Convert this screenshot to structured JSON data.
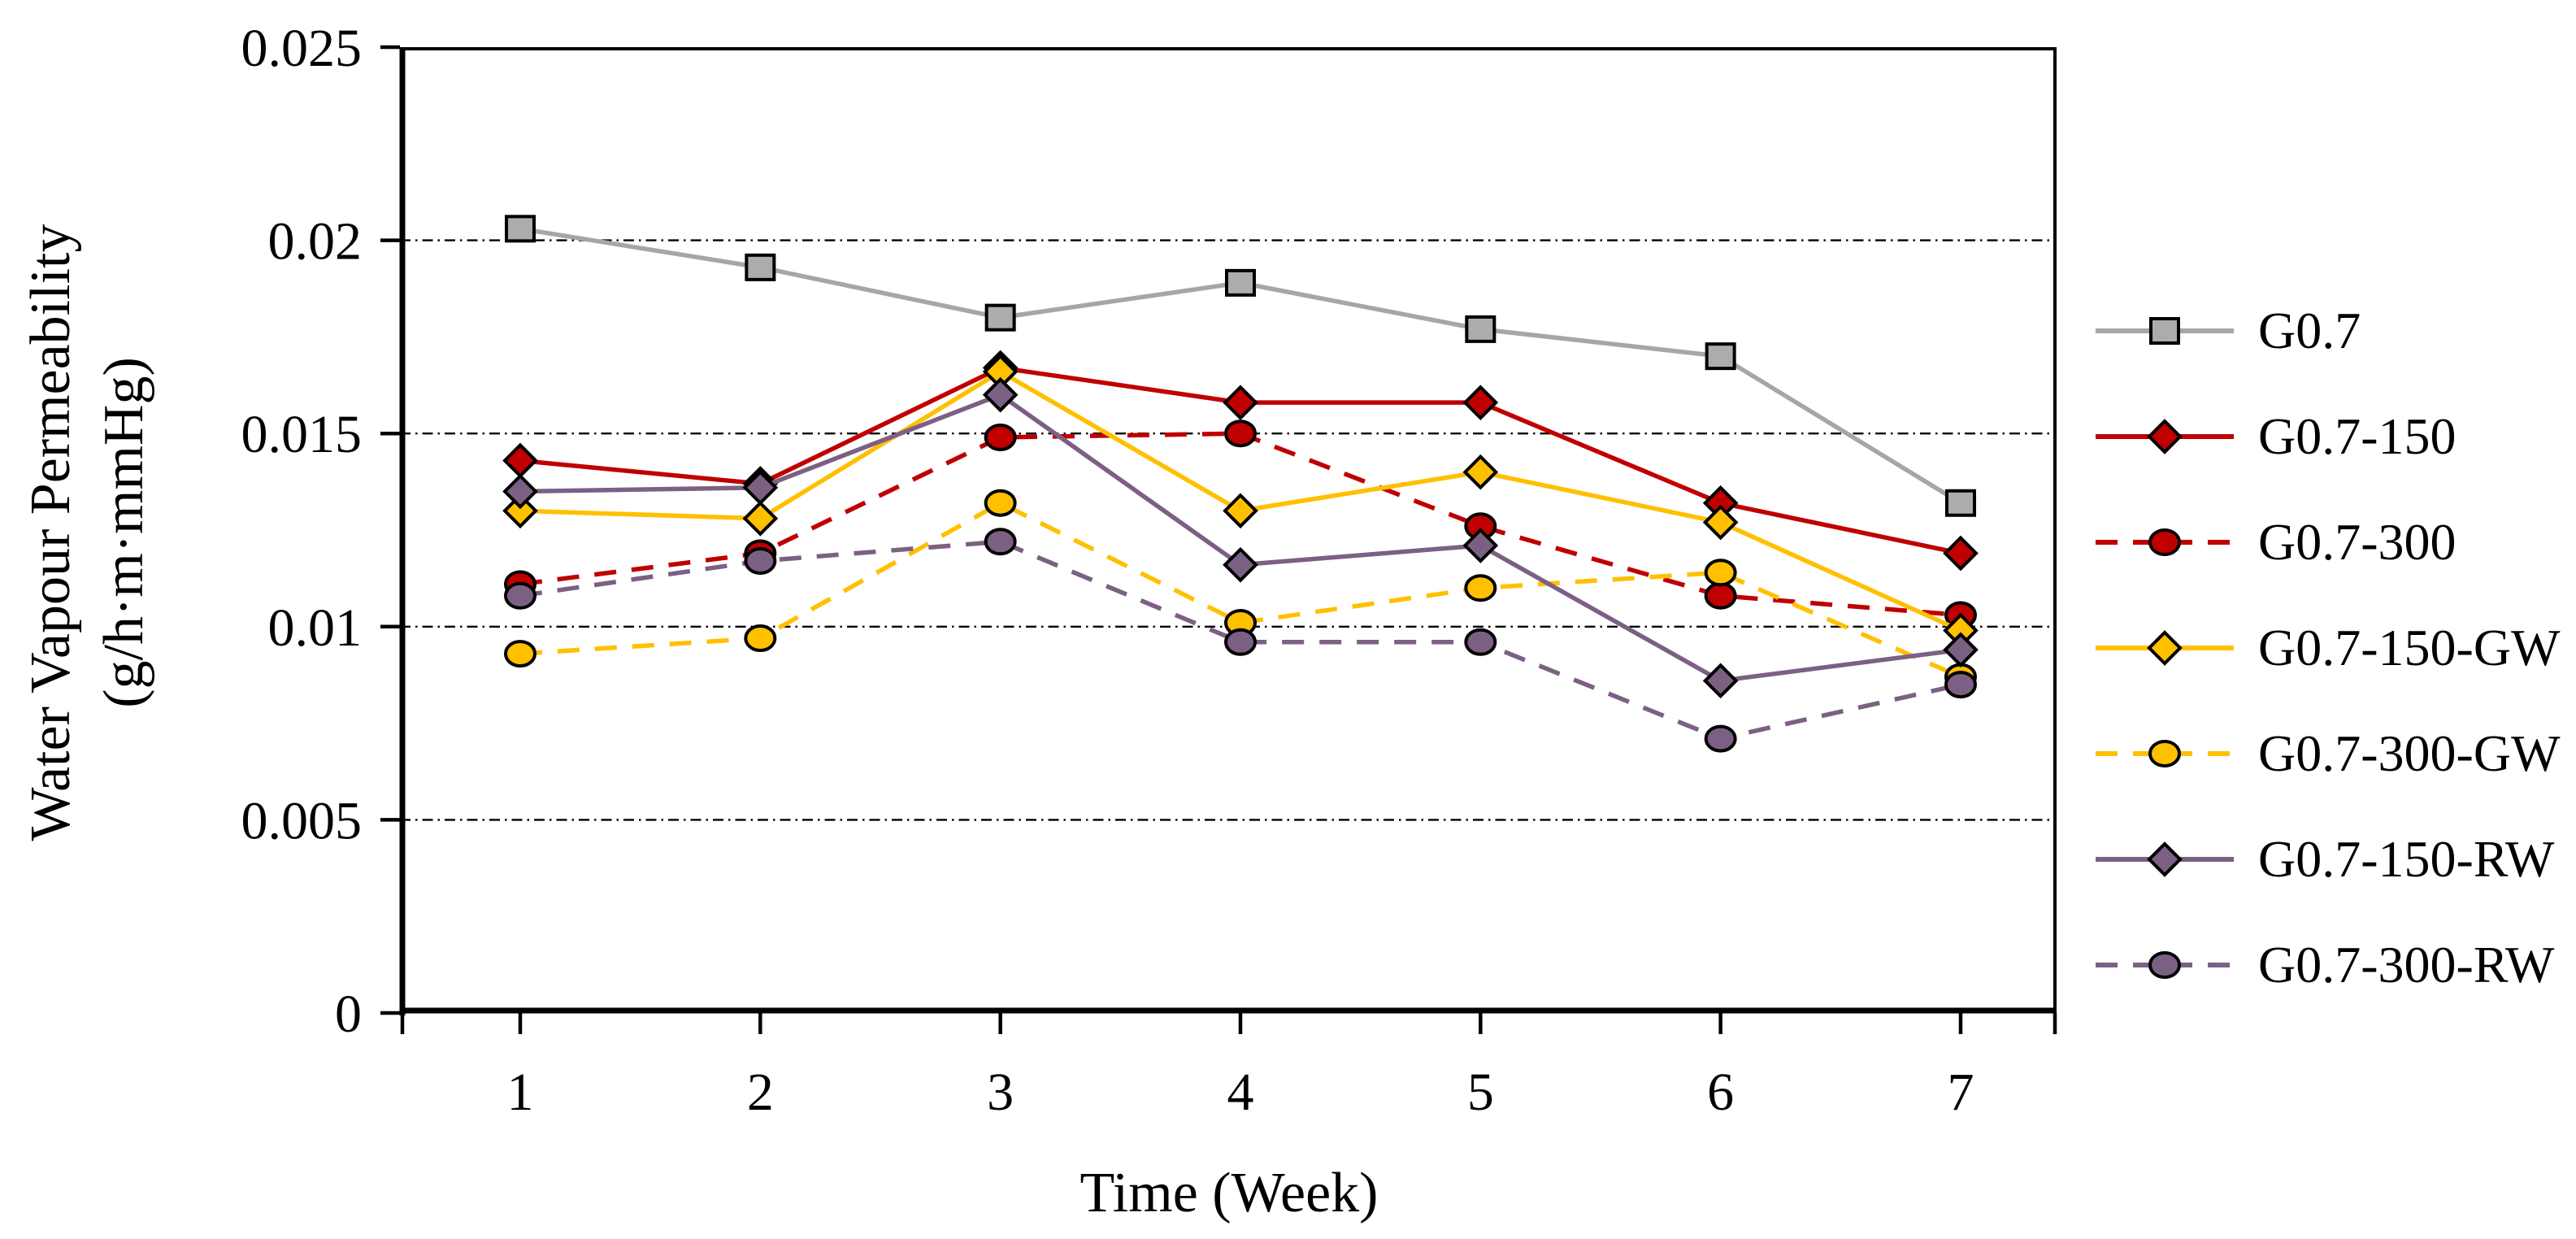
{
  "figure": {
    "background": "#FFFFFF",
    "axis_color": "#000000",
    "grid_color": "#000000"
  },
  "chart_data": {
    "type": "line",
    "title": "",
    "xlabel": "Time (Week)",
    "ylabel_line1": "Water Vapour Permeability",
    "ylabel_line2": "(g/h·m·mmHg)",
    "categories": [
      1,
      2,
      3,
      4,
      5,
      6,
      7
    ],
    "x_tick_labels": [
      "1",
      "2",
      "3",
      "4",
      "5",
      "6",
      "7"
    ],
    "y_ticks": [
      0,
      0.005,
      0.01,
      0.015,
      0.02,
      0.025
    ],
    "y_tick_labels": [
      "0",
      "0.005",
      "0.01",
      "0.015",
      "0.02",
      "0.025"
    ],
    "ylim": [
      0,
      0.025
    ],
    "grid_values": [
      0.005,
      0.01,
      0.015,
      0.02
    ],
    "grid_on": true,
    "grid_style": "dash-dot",
    "legend_position": "right",
    "series": [
      {
        "name": "G0.7",
        "color": "#A6A6A6",
        "fill": "#ACACAC",
        "marker": "square",
        "line": "solid",
        "values": [
          0.0203,
          0.0193,
          0.018,
          0.0189,
          0.0177,
          0.017,
          0.0132
        ]
      },
      {
        "name": "G0.7-150",
        "color": "#C00000",
        "fill": "#C00000",
        "marker": "diamond",
        "line": "solid",
        "values": [
          0.0143,
          0.0137,
          0.0167,
          0.0158,
          0.0158,
          0.0132,
          0.0119
        ]
      },
      {
        "name": "G0.7-300",
        "color": "#C00000",
        "fill": "#C00000",
        "marker": "circle",
        "line": "dashed",
        "values": [
          0.0111,
          0.0119,
          0.0149,
          0.015,
          0.0126,
          0.0108,
          0.0103
        ]
      },
      {
        "name": "G0.7-150-GW",
        "color": "#FFC000",
        "fill": "#FFC000",
        "marker": "diamond",
        "line": "solid",
        "values": [
          0.013,
          0.0128,
          0.0166,
          0.013,
          0.014,
          0.0127,
          0.0099
        ]
      },
      {
        "name": "G0.7-300-GW",
        "color": "#FFC000",
        "fill": "#FFC000",
        "marker": "circle",
        "line": "dashed",
        "values": [
          0.0093,
          0.0097,
          0.0132,
          0.0101,
          0.011,
          0.0114,
          0.0087
        ]
      },
      {
        "name": "G0.7-150-RW",
        "color": "#7C6083",
        "fill": "#7C6083",
        "marker": "diamond",
        "line": "solid",
        "values": [
          0.0135,
          0.0136,
          0.016,
          0.0116,
          0.0121,
          0.0086,
          0.0094
        ]
      },
      {
        "name": "G0.7-300-RW",
        "color": "#7C6083",
        "fill": "#7C6083",
        "marker": "circle",
        "line": "dashed",
        "values": [
          0.0108,
          0.0117,
          0.0122,
          0.0096,
          0.0096,
          0.0071,
          0.0085
        ]
      }
    ]
  }
}
